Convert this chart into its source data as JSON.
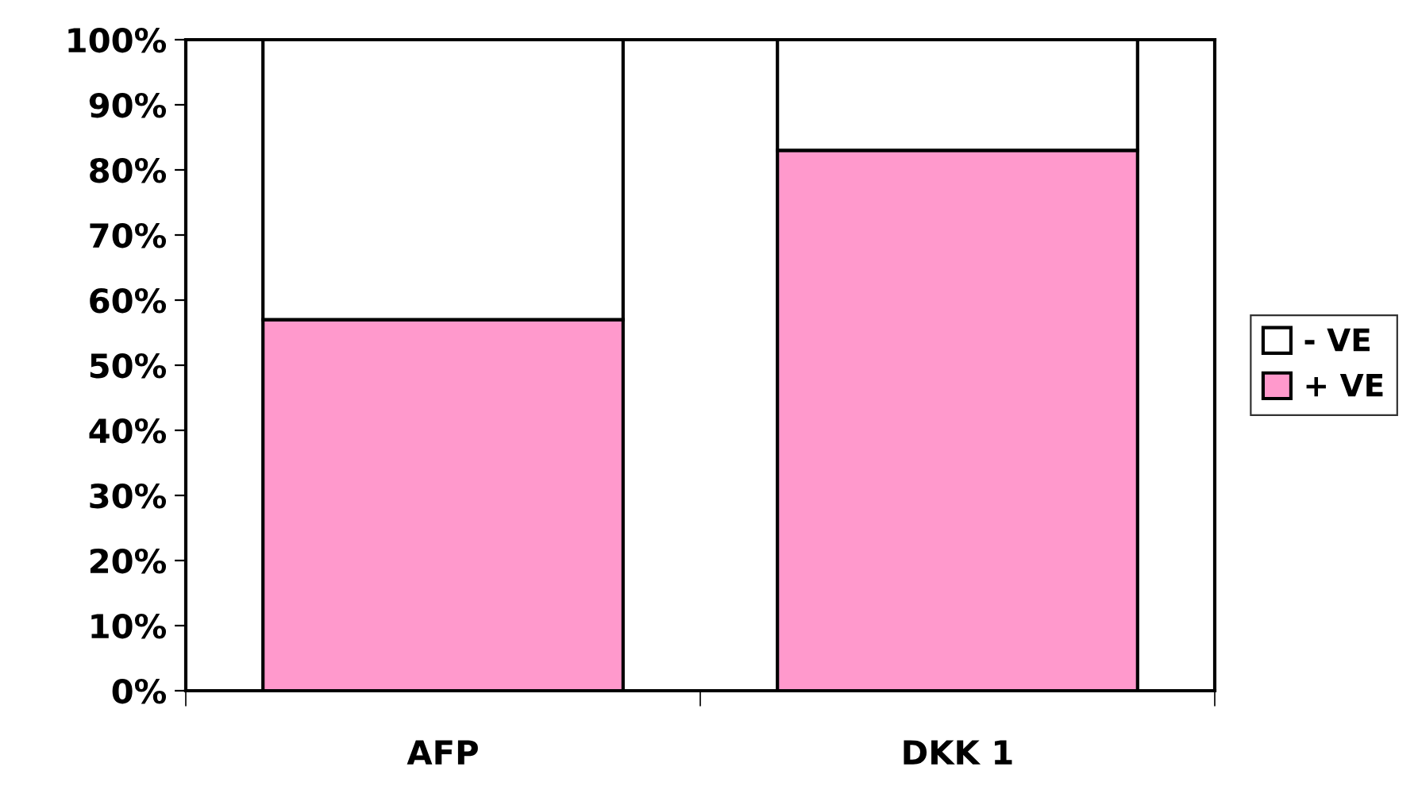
{
  "chart_data": {
    "type": "bar",
    "stacked": true,
    "categories": [
      "AFP",
      "DKK 1"
    ],
    "series": [
      {
        "name": "+ VE",
        "color": "#ff99cc",
        "values": [
          57,
          83
        ]
      },
      {
        "name": "- VE",
        "color": "#ffffff",
        "values": [
          43,
          17
        ]
      }
    ],
    "ylim": [
      0,
      100
    ],
    "yticks": [
      {
        "value": 0,
        "label": "0%"
      },
      {
        "value": 10,
        "label": "10%"
      },
      {
        "value": 20,
        "label": "20%"
      },
      {
        "value": 30,
        "label": "30%"
      },
      {
        "value": 40,
        "label": "40%"
      },
      {
        "value": 50,
        "label": "50%"
      },
      {
        "value": 60,
        "label": "60%"
      },
      {
        "value": 70,
        "label": "70%"
      },
      {
        "value": 80,
        "label": "80%"
      },
      {
        "value": 90,
        "label": "90%"
      },
      {
        "value": 100,
        "label": "100%"
      }
    ],
    "grid": false,
    "legend": "right"
  }
}
